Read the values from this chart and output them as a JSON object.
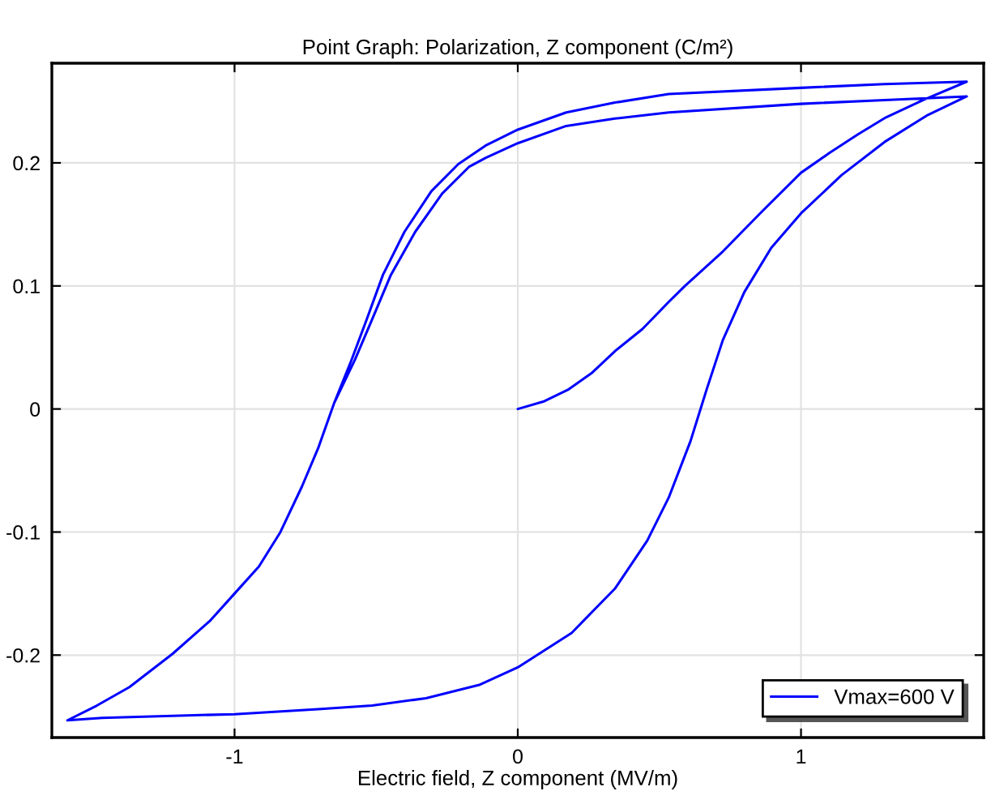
{
  "chart_data": {
    "type": "line",
    "title": "Point Graph: Polarization, Z component (C/m²)",
    "xlabel": "Electric field, Z component (MV/m)",
    "x": [
      0,
      0.09,
      0.18,
      0.26,
      0.343,
      0.44,
      0.533,
      0.59,
      0.724,
      0.86,
      1.0,
      1.1,
      1.2,
      1.3,
      1.43,
      1.585,
      1.295,
      1.0,
      0.533,
      0.343,
      0.171,
      0,
      -0.114,
      -0.21,
      -0.305,
      -0.4,
      -0.476,
      -0.533,
      -0.59,
      -0.648,
      -0.705,
      -0.762,
      -0.838,
      -0.914,
      -1.0,
      -1.086,
      -1.219,
      -1.371,
      -1.486,
      -1.59,
      -1.467,
      -1.0,
      -0.705,
      -0.514,
      -0.324,
      -0.133,
      0,
      0.19,
      0.343,
      0.457,
      0.533,
      0.61,
      0.667,
      0.724,
      0.8,
      0.895,
      1.0,
      1.143,
      1.295,
      1.448,
      1.585,
      1.295,
      1.0,
      0.533,
      0.343,
      0.171,
      0,
      -0.114,
      -0.171,
      -0.267,
      -0.362,
      -0.448,
      -0.514,
      -0.575,
      -0.648,
      -0.705,
      -0.762,
      -0.838,
      -0.914,
      -1.0,
      -1.086,
      -1.219,
      -1.371,
      -1.486,
      -1.59
    ],
    "series": [
      {
        "name": "Vmax=600 V",
        "color": "#0000ff",
        "values": [
          0,
          0.006,
          0.016,
          0.029,
          0.047,
          0.065,
          0.087,
          0.1,
          0.128,
          0.16,
          0.192,
          0.208,
          0.223,
          0.237,
          0.251,
          0.266,
          0.264,
          0.261,
          0.256,
          0.249,
          0.241,
          0.227,
          0.214,
          0.199,
          0.177,
          0.144,
          0.109,
          0.073,
          0.038,
          0.005,
          -0.032,
          -0.063,
          -0.1,
          -0.128,
          -0.15,
          -0.172,
          -0.199,
          -0.226,
          -0.241,
          -0.253,
          -0.251,
          -0.248,
          -0.244,
          -0.241,
          -0.235,
          -0.224,
          -0.21,
          -0.182,
          -0.146,
          -0.107,
          -0.072,
          -0.026,
          0.016,
          0.056,
          0.095,
          0.131,
          0.159,
          0.19,
          0.217,
          0.239,
          0.254,
          0.251,
          0.248,
          0.241,
          0.236,
          0.23,
          0.216,
          0.204,
          0.197,
          0.175,
          0.144,
          0.109,
          0.073,
          0.04,
          0.005,
          -0.032,
          -0.063,
          -0.1,
          -0.128,
          -0.15,
          -0.172,
          -0.199,
          -0.226,
          -0.241,
          -0.253
        ]
      }
    ],
    "xlim": [
      -1.645,
      1.645
    ],
    "ylim": [
      -0.267,
      0.281
    ],
    "xticks": [
      -1,
      0,
      1
    ],
    "yticks": [
      -0.2,
      -0.1,
      0,
      0.1,
      0.2
    ],
    "grid": true,
    "legend": "bottom right",
    "line_style": "solid"
  }
}
